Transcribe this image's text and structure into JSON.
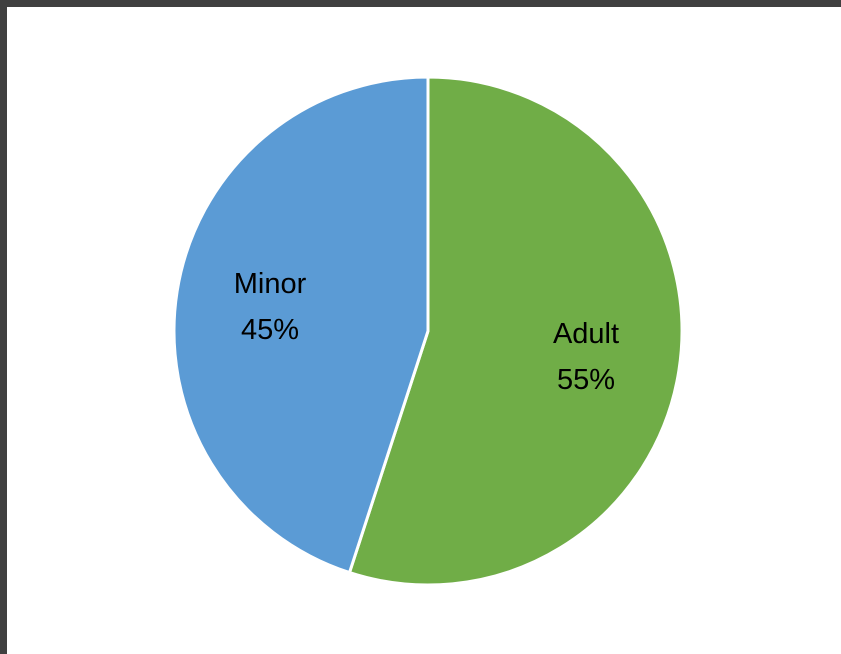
{
  "chart_data": {
    "type": "pie",
    "title": "",
    "legend": "none",
    "start_angle_degrees": 0,
    "direction": "clockwise",
    "slices": [
      {
        "label": "Adult",
        "value": 55,
        "value_label": "55%",
        "color": "#70AD47"
      },
      {
        "label": "Minor",
        "value": 45,
        "value_label": "45%",
        "color": "#5B9BD5"
      }
    ]
  }
}
